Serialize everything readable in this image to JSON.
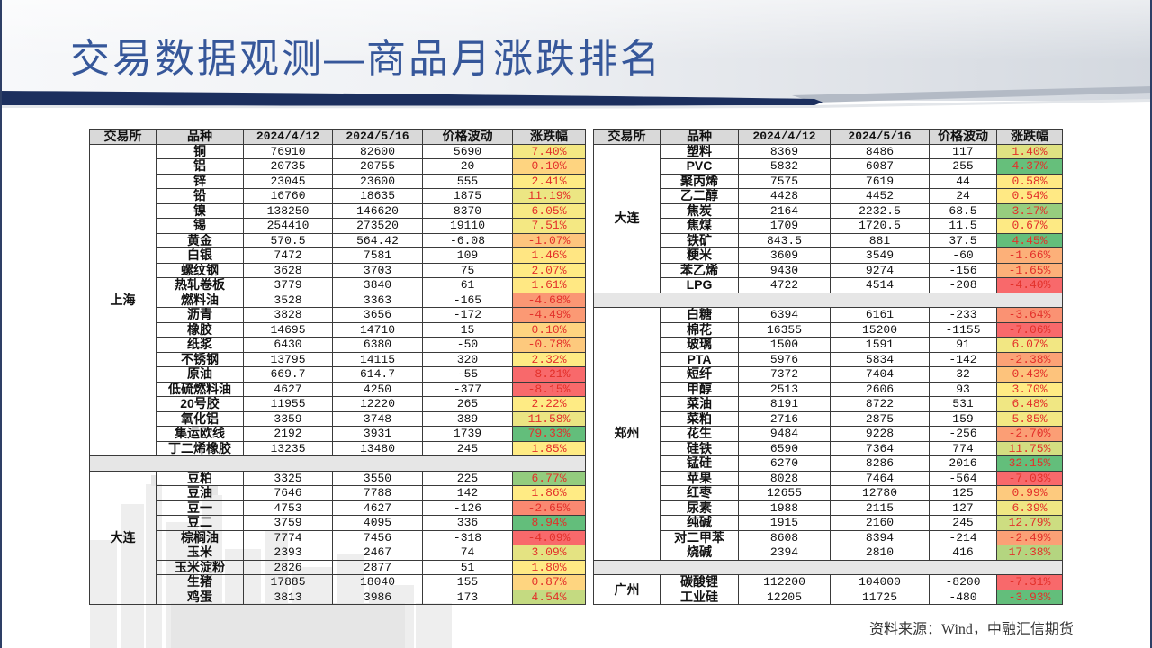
{
  "title": "交易数据观测—商品月涨跌排名",
  "source": "资料来源：Wind，中融汇信期货",
  "colors": {
    "title": "#36579a",
    "accent": "#1c2f5e",
    "header_bg": "#d9d9d9",
    "pct_text": "#e3302a",
    "scale_min": "#f8696b",
    "scale_mid": "#ffeb84",
    "scale_max": "#63be7b"
  },
  "tables": [
    {
      "headers": [
        "交易所",
        "品种",
        "2024/4/12",
        "2024/5/16",
        "价格波动",
        "涨跌幅"
      ],
      "groups": [
        {
          "exchange": "上海",
          "rows": [
            [
              "铜",
              "76910",
              "82600",
              "5690",
              "7.40%"
            ],
            [
              "铝",
              "20735",
              "20755",
              "20",
              "0.10%"
            ],
            [
              "锌",
              "23045",
              "23600",
              "555",
              "2.41%"
            ],
            [
              "铅",
              "16760",
              "18635",
              "1875",
              "11.19%"
            ],
            [
              "镍",
              "138250",
              "146620",
              "8370",
              "6.05%"
            ],
            [
              "锡",
              "254410",
              "273520",
              "19110",
              "7.51%"
            ],
            [
              "黄金",
              "570.5",
              "564.42",
              "-6.08",
              "-1.07%"
            ],
            [
              "白银",
              "7472",
              "7581",
              "109",
              "1.46%"
            ],
            [
              "螺纹钢",
              "3628",
              "3703",
              "75",
              "2.07%"
            ],
            [
              "热轧卷板",
              "3779",
              "3840",
              "61",
              "1.61%"
            ],
            [
              "燃料油",
              "3528",
              "3363",
              "-165",
              "-4.68%"
            ],
            [
              "沥青",
              "3828",
              "3656",
              "-172",
              "-4.49%"
            ],
            [
              "橡胶",
              "14695",
              "14710",
              "15",
              "0.10%"
            ],
            [
              "纸浆",
              "6430",
              "6380",
              "-50",
              "-0.78%"
            ],
            [
              "不锈钢",
              "13795",
              "14115",
              "320",
              "2.32%"
            ],
            [
              "原油",
              "669.7",
              "614.7",
              "-55",
              "-8.21%"
            ],
            [
              "低硫燃料油",
              "4627",
              "4250",
              "-377",
              "-8.15%"
            ],
            [
              "20号胶",
              "11955",
              "12220",
              "265",
              "2.22%"
            ],
            [
              "氧化铝",
              "3359",
              "3748",
              "389",
              "11.58%"
            ],
            [
              "集运欧线",
              "2192",
              "3931",
              "1739",
              "79.33%"
            ],
            [
              "丁二烯橡胶",
              "13235",
              "13480",
              "245",
              "1.85%"
            ]
          ]
        },
        {
          "exchange": "大连",
          "rows": [
            [
              "豆粕",
              "3325",
              "3550",
              "225",
              "6.77%"
            ],
            [
              "豆油",
              "7646",
              "7788",
              "142",
              "1.86%"
            ],
            [
              "豆一",
              "4753",
              "4627",
              "-126",
              "-2.65%"
            ],
            [
              "豆二",
              "3759",
              "4095",
              "336",
              "8.94%"
            ],
            [
              "棕榈油",
              "7774",
              "7456",
              "-318",
              "-4.09%"
            ],
            [
              "玉米",
              "2393",
              "2467",
              "74",
              "3.09%"
            ],
            [
              "玉米淀粉",
              "2826",
              "2877",
              "51",
              "1.80%"
            ],
            [
              "生猪",
              "17885",
              "18040",
              "155",
              "0.87%"
            ],
            [
              "鸡蛋",
              "3813",
              "3986",
              "173",
              "4.54%"
            ]
          ]
        }
      ]
    },
    {
      "headers": [
        "交易所",
        "品种",
        "2024/4/12",
        "2024/5/16",
        "价格波动",
        "涨跌幅"
      ],
      "groups": [
        {
          "exchange": "大连",
          "rows": [
            [
              "塑料",
              "8369",
              "8486",
              "117",
              "1.40%"
            ],
            [
              "PVC",
              "5832",
              "6087",
              "255",
              "4.37%"
            ],
            [
              "聚丙烯",
              "7575",
              "7619",
              "44",
              "0.58%"
            ],
            [
              "乙二醇",
              "4428",
              "4452",
              "24",
              "0.54%"
            ],
            [
              "焦炭",
              "2164",
              "2232.5",
              "68.5",
              "3.17%"
            ],
            [
              "焦煤",
              "1709",
              "1720.5",
              "11.5",
              "0.67%"
            ],
            [
              "铁矿",
              "843.5",
              "881",
              "37.5",
              "4.45%"
            ],
            [
              "粳米",
              "3609",
              "3549",
              "-60",
              "-1.66%"
            ],
            [
              "苯乙烯",
              "9430",
              "9274",
              "-156",
              "-1.65%"
            ],
            [
              "LPG",
              "4722",
              "4514",
              "-208",
              "-4.40%"
            ]
          ]
        },
        {
          "exchange": "郑州",
          "rows": [
            [
              "白糖",
              "6394",
              "6161",
              "-233",
              "-3.64%"
            ],
            [
              "棉花",
              "16355",
              "15200",
              "-1155",
              "-7.06%"
            ],
            [
              "玻璃",
              "1500",
              "1591",
              "91",
              "6.07%"
            ],
            [
              "PTA",
              "5976",
              "5834",
              "-142",
              "-2.38%"
            ],
            [
              "短纤",
              "7372",
              "7404",
              "32",
              "0.43%"
            ],
            [
              "甲醇",
              "2513",
              "2606",
              "93",
              "3.70%"
            ],
            [
              "菜油",
              "8191",
              "8722",
              "531",
              "6.48%"
            ],
            [
              "菜粕",
              "2716",
              "2875",
              "159",
              "5.85%"
            ],
            [
              "花生",
              "9484",
              "9228",
              "-256",
              "-2.70%"
            ],
            [
              "硅铁",
              "6590",
              "7364",
              "774",
              "11.75%"
            ],
            [
              "锰硅",
              "6270",
              "8286",
              "2016",
              "32.15%"
            ],
            [
              "苹果",
              "8028",
              "7464",
              "-564",
              "-7.03%"
            ],
            [
              "红枣",
              "12655",
              "12780",
              "125",
              "0.99%"
            ],
            [
              "尿素",
              "1988",
              "2115",
              "127",
              "6.39%"
            ],
            [
              "纯碱",
              "1915",
              "2160",
              "245",
              "12.79%"
            ],
            [
              "对二甲苯",
              "8608",
              "8394",
              "-214",
              "-2.49%"
            ],
            [
              "烧碱",
              "2394",
              "2810",
              "416",
              "17.38%"
            ]
          ]
        },
        {
          "exchange": "广州",
          "rows": [
            [
              "碳酸锂",
              "112200",
              "104000",
              "-8200",
              "-7.31%"
            ],
            [
              "工业硅",
              "12205",
              "11725",
              "-480",
              "-3.93%"
            ]
          ]
        }
      ]
    }
  ]
}
